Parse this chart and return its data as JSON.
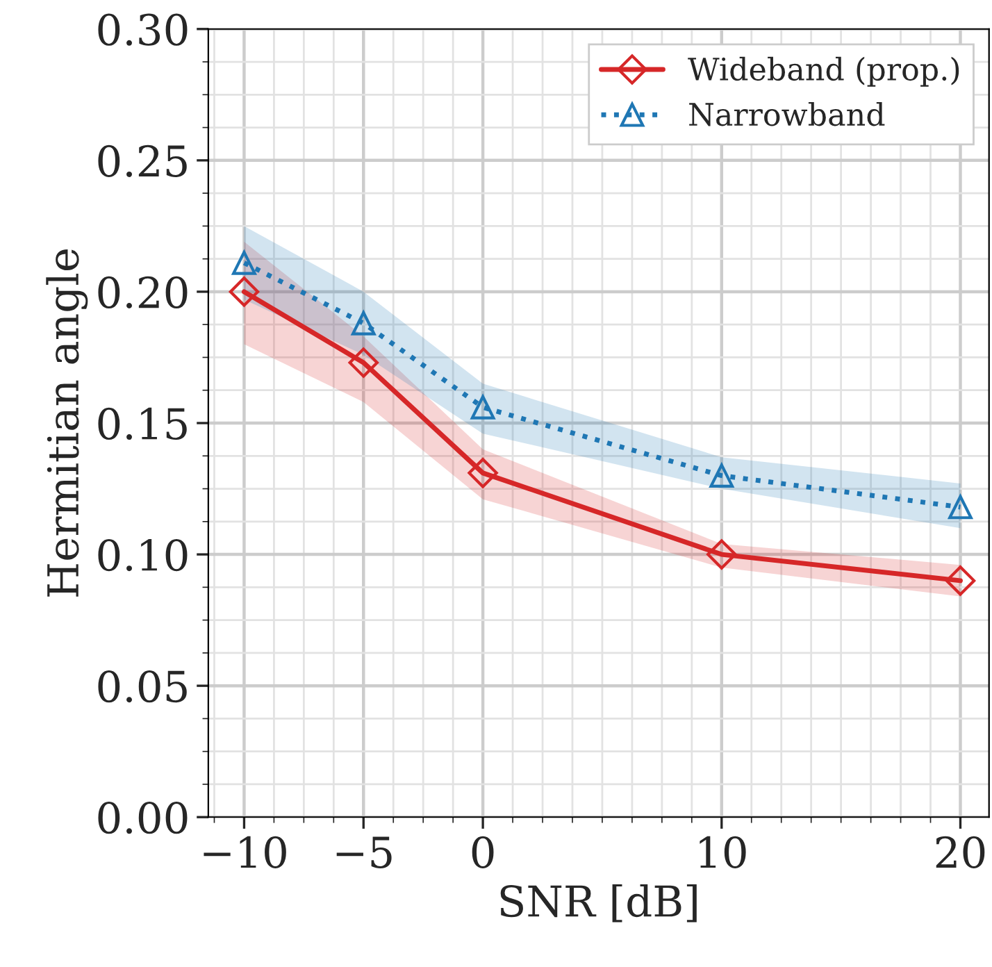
{
  "chart_data": {
    "type": "line",
    "xlabel": "SNR [dB]",
    "ylabel": "Hermitian angle",
    "x": [
      -10,
      -5,
      0,
      10,
      20
    ],
    "xlim": [
      -11.5,
      21.2
    ],
    "xticks": [
      {
        "value": -10,
        "label": "−10"
      },
      {
        "value": -5,
        "label": "−5"
      },
      0,
      10,
      20
    ],
    "ylim": [
      0,
      0.3
    ],
    "yticks": [
      {
        "value": 0,
        "label": "0.00"
      },
      {
        "value": 0.05,
        "label": "0.05"
      },
      {
        "value": 0.1,
        "label": "0.10"
      },
      {
        "value": 0.15,
        "label": "0.15"
      },
      {
        "value": 0.2,
        "label": "0.20"
      },
      {
        "value": 0.25,
        "label": "0.25"
      },
      {
        "value": 0.3,
        "label": "0.30"
      }
    ],
    "grid": true,
    "legend": "top right",
    "series": [
      {
        "name": "Wideband (prop.)",
        "color": "#d62728",
        "marker": "diamond",
        "line_style": "solid",
        "values": [
          0.2,
          0.173,
          0.131,
          0.1,
          0.09
        ],
        "lower": [
          0.18,
          0.158,
          0.121,
          0.095,
          0.084
        ],
        "upper": [
          0.219,
          0.183,
          0.14,
          0.104,
          0.096
        ]
      },
      {
        "name": "Narrowband",
        "color": "#1f77b4",
        "marker": "triangle",
        "line_style": "dotted",
        "values": [
          0.211,
          0.188,
          0.156,
          0.13,
          0.118
        ],
        "lower": [
          0.197,
          0.176,
          0.146,
          0.125,
          0.11
        ],
        "upper": [
          0.225,
          0.2,
          0.165,
          0.137,
          0.127
        ]
      }
    ]
  }
}
